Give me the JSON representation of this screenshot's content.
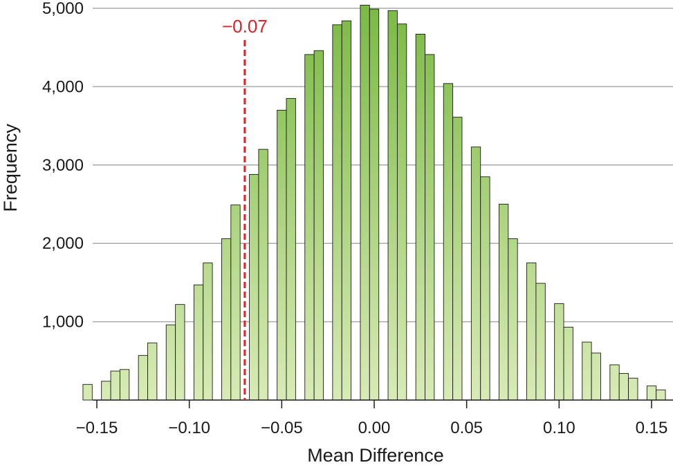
{
  "chart_data": {
    "type": "bar",
    "title": "",
    "xlabel": "Mean Difference",
    "ylabel": "Frequency",
    "xlim": [
      -0.155,
      0.158
    ],
    "ylim": [
      0,
      5000
    ],
    "grid": true,
    "x_ticks": [
      {
        "value": -0.15,
        "label": "−0.15"
      },
      {
        "value": -0.1,
        "label": "−0.10"
      },
      {
        "value": -0.05,
        "label": "−0.05"
      },
      {
        "value": 0.0,
        "label": "0.00"
      },
      {
        "value": 0.05,
        "label": "0.05"
      },
      {
        "value": 0.1,
        "label": "0.10"
      },
      {
        "value": 0.15,
        "label": "0.15"
      }
    ],
    "y_ticks": [
      {
        "value": 1000,
        "label": "1,000"
      },
      {
        "value": 2000,
        "label": "2,000"
      },
      {
        "value": 3000,
        "label": "3,000"
      },
      {
        "value": 4000,
        "label": "4,000"
      },
      {
        "value": 5000,
        "label": "5,000"
      }
    ],
    "bar_colors": {
      "top": "#7cba45",
      "bottom": "#d8ebb6",
      "stroke": "#1a1a1a"
    },
    "grid_color": "#a7a9ac",
    "bars": [
      {
        "x": -0.155,
        "value": 200
      },
      {
        "x": -0.145,
        "value": 240
      },
      {
        "x": -0.14,
        "value": 370
      },
      {
        "x": -0.135,
        "value": 390
      },
      {
        "x": -0.125,
        "value": 570
      },
      {
        "x": -0.12,
        "value": 730
      },
      {
        "x": -0.11,
        "value": 960
      },
      {
        "x": -0.105,
        "value": 1220
      },
      {
        "x": -0.095,
        "value": 1470
      },
      {
        "x": -0.09,
        "value": 1750
      },
      {
        "x": -0.08,
        "value": 2060
      },
      {
        "x": -0.075,
        "value": 2490
      },
      {
        "x": -0.065,
        "value": 2880
      },
      {
        "x": -0.06,
        "value": 3200
      },
      {
        "x": -0.05,
        "value": 3700
      },
      {
        "x": -0.045,
        "value": 3850
      },
      {
        "x": -0.035,
        "value": 4410
      },
      {
        "x": -0.03,
        "value": 4460
      },
      {
        "x": -0.02,
        "value": 4790
      },
      {
        "x": -0.015,
        "value": 4840
      },
      {
        "x": -0.005,
        "value": 5040
      },
      {
        "x": 0.0,
        "value": 4990
      },
      {
        "x": 0.01,
        "value": 4970
      },
      {
        "x": 0.015,
        "value": 4800
      },
      {
        "x": 0.025,
        "value": 4670
      },
      {
        "x": 0.03,
        "value": 4410
      },
      {
        "x": 0.04,
        "value": 4040
      },
      {
        "x": 0.045,
        "value": 3610
      },
      {
        "x": 0.055,
        "value": 3230
      },
      {
        "x": 0.06,
        "value": 2850
      },
      {
        "x": 0.07,
        "value": 2500
      },
      {
        "x": 0.075,
        "value": 2060
      },
      {
        "x": 0.085,
        "value": 1750
      },
      {
        "x": 0.09,
        "value": 1490
      },
      {
        "x": 0.1,
        "value": 1230
      },
      {
        "x": 0.105,
        "value": 930
      },
      {
        "x": 0.115,
        "value": 740
      },
      {
        "x": 0.12,
        "value": 600
      },
      {
        "x": 0.13,
        "value": 450
      },
      {
        "x": 0.135,
        "value": 340
      },
      {
        "x": 0.14,
        "value": 280
      },
      {
        "x": 0.15,
        "value": 180
      },
      {
        "x": 0.155,
        "value": 130
      }
    ],
    "bar_width": 0.005,
    "reference_line": {
      "x": -0.07,
      "label": "−0.07",
      "color": "#e31e24"
    }
  }
}
